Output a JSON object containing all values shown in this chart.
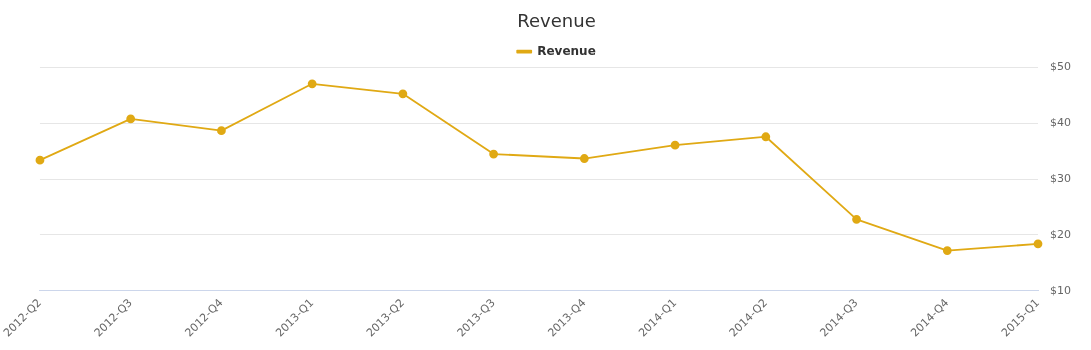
{
  "chart_data": {
    "type": "line",
    "title": "Revenue",
    "categories": [
      "2012-Q2",
      "2012-Q3",
      "2012-Q4",
      "2013-Q1",
      "2013-Q2",
      "2013-Q3",
      "2013-Q4",
      "2014-Q1",
      "2014-Q2",
      "2014-Q3",
      "2014-Q4",
      "2015-Q1"
    ],
    "series": [
      {
        "name": "Revenue",
        "color": "#e0a914",
        "values": [
          33.4,
          40.8,
          38.7,
          47.1,
          45.3,
          34.5,
          33.7,
          36.1,
          37.6,
          22.8,
          17.2,
          18.4
        ]
      }
    ],
    "ylim": [
      10,
      50
    ],
    "yticks": [
      {
        "value": 10,
        "label": "$10"
      },
      {
        "value": 20,
        "label": "$20"
      },
      {
        "value": 30,
        "label": "$30"
      },
      {
        "value": 40,
        "label": "$40"
      },
      {
        "value": 50,
        "label": "$50"
      }
    ],
    "grid": "y",
    "legend": "top",
    "marker": "circle",
    "line_style": "solid"
  }
}
